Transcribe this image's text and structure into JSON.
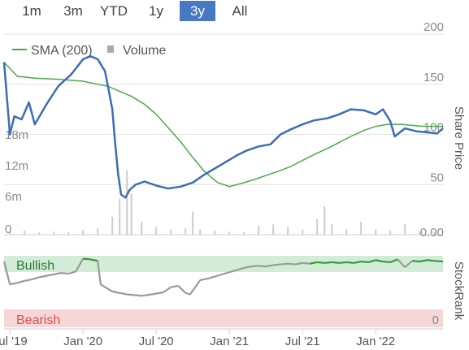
{
  "range_tabs": [
    {
      "label": "1m",
      "active": false
    },
    {
      "label": "3m",
      "active": false
    },
    {
      "label": "YTD",
      "active": false
    },
    {
      "label": "1y",
      "active": false
    },
    {
      "label": "3y",
      "active": true
    },
    {
      "label": "All",
      "active": false
    }
  ],
  "legend": {
    "sma": "SMA (200)",
    "volume": "Volume"
  },
  "stockrank": {
    "title": "StockRank",
    "bullish": "Bullish",
    "bearish": "Bearish",
    "zero": "0"
  },
  "colors": {
    "price": "#3d6db5",
    "sma": "#4aab48",
    "volume": "#cccccc",
    "tab_active": "#4678c4",
    "bullish_band": "#d3ecd7",
    "bearish_band": "#f6d6d6",
    "rank_green": "#2e9a3a",
    "rank_gray": "#9a9a9a",
    "bearish_text": "#d9534f"
  },
  "chart_data": {
    "type": "line",
    "title": "",
    "right_axis_title": "Share Price",
    "price_axis": {
      "ticks": [
        "50",
        "100",
        "150",
        "200"
      ],
      "ylim": [
        0,
        200
      ]
    },
    "volume_axis": {
      "ticks": [
        "0",
        "6m",
        "12m",
        "18m"
      ],
      "ylim": [
        0,
        27
      ]
    },
    "volume_zero_label": "0.00",
    "x_labels": [
      "Jul '19",
      "Jan '20",
      "Jul '20",
      "Jan '21",
      "Jul '21",
      "Jan '22"
    ],
    "x_ticks": [
      2019.5,
      2020.0,
      2020.5,
      2021.0,
      2021.5,
      2022.0
    ],
    "xlim": [
      2019.46,
      2022.46
    ],
    "grid": true,
    "legend_position": "top-left",
    "series": [
      {
        "name": "Share Price",
        "x": [
          2019.46,
          2019.5,
          2019.53,
          2019.58,
          2019.63,
          2019.67,
          2019.75,
          2019.83,
          2019.92,
          2020.0,
          2020.05,
          2020.1,
          2020.15,
          2020.2,
          2020.22,
          2020.24,
          2020.26,
          2020.29,
          2020.32,
          2020.36,
          2020.42,
          2020.5,
          2020.58,
          2020.67,
          2020.75,
          2020.83,
          2020.9,
          2020.97,
          2021.05,
          2021.12,
          2021.2,
          2021.28,
          2021.35,
          2021.42,
          2021.5,
          2021.58,
          2021.67,
          2021.75,
          2021.83,
          2021.92,
          2022.0,
          2022.05,
          2022.1,
          2022.13,
          2022.2,
          2022.28,
          2022.35,
          2022.42,
          2022.46
        ],
        "values": [
          172,
          100,
          118,
          115,
          132,
          110,
          130,
          148,
          160,
          175,
          178,
          175,
          163,
          125,
          90,
          60,
          40,
          37,
          45,
          50,
          53,
          49,
          46,
          48,
          52,
          60,
          66,
          72,
          79,
          84,
          88,
          90,
          100,
          105,
          110,
          114,
          116,
          120,
          125,
          124,
          120,
          125,
          113,
          98,
          106,
          103,
          102,
          101,
          106
        ]
      },
      {
        "name": "SMA (200)",
        "x": [
          2019.46,
          2019.55,
          2019.67,
          2019.83,
          2020.0,
          2020.1,
          2020.17,
          2020.25,
          2020.33,
          2020.42,
          2020.5,
          2020.58,
          2020.67,
          2020.75,
          2020.83,
          2020.92,
          2021.0,
          2021.08,
          2021.17,
          2021.25,
          2021.33,
          2021.42,
          2021.5,
          2021.58,
          2021.67,
          2021.75,
          2021.83,
          2021.92,
          2022.0,
          2022.08,
          2022.17,
          2022.25,
          2022.33,
          2022.42,
          2022.46
        ],
        "values": [
          172,
          158,
          156,
          155,
          153,
          150,
          148,
          143,
          138,
          130,
          120,
          107,
          92,
          77,
          63,
          52,
          48,
          51,
          55,
          59,
          63,
          68,
          74,
          80,
          86,
          92,
          98,
          104,
          108,
          110,
          110,
          109,
          108,
          108,
          108
        ]
      },
      {
        "name": "Volume",
        "type": "bar",
        "x": [
          2019.5,
          2019.6,
          2019.7,
          2019.8,
          2019.9,
          2020.0,
          2020.1,
          2020.2,
          2020.25,
          2020.3,
          2020.33,
          2020.4,
          2020.5,
          2020.6,
          2020.7,
          2020.75,
          2020.8,
          2020.9,
          2021.0,
          2021.1,
          2021.2,
          2021.3,
          2021.4,
          2021.5,
          2021.6,
          2021.65,
          2021.7,
          2021.8,
          2021.9,
          2022.0,
          2022.1,
          2022.2,
          2022.3,
          2022.4
        ],
        "values": [
          0.5,
          0.8,
          0.4,
          0.6,
          0.5,
          0.9,
          1.2,
          3.5,
          7.0,
          12.5,
          8.0,
          2.5,
          1.5,
          1.0,
          1.2,
          4.5,
          1.0,
          0.8,
          0.6,
          0.5,
          1.8,
          2.0,
          1.5,
          1.0,
          3.0,
          5.5,
          2.0,
          1.0,
          2.5,
          1.0,
          0.8,
          2.0,
          0.6,
          0.5
        ]
      }
    ]
  },
  "stockrank_data": {
    "x": [
      2019.46,
      2019.5,
      2019.55,
      2019.6,
      2019.65,
      2019.7,
      2019.75,
      2019.8,
      2019.85,
      2019.9,
      2019.95,
      2020.0,
      2020.05,
      2020.1,
      2020.12,
      2020.2,
      2020.3,
      2020.4,
      2020.5,
      2020.55,
      2020.6,
      2020.65,
      2020.7,
      2020.73,
      2020.76,
      2020.8,
      2020.85,
      2020.9,
      2020.95,
      2021.0,
      2021.05,
      2021.1,
      2021.15,
      2021.2,
      2021.25,
      2021.3,
      2021.35,
      2021.4,
      2021.45,
      2021.5,
      2021.55,
      2021.6,
      2021.65,
      2021.7,
      2021.75,
      2021.8,
      2021.85,
      2021.9,
      2021.95,
      2022.0,
      2022.05,
      2022.1,
      2022.15,
      2022.2,
      2022.25,
      2022.3,
      2022.35,
      2022.4,
      2022.46
    ],
    "values": [
      92,
      60,
      62,
      65,
      67,
      70,
      72,
      74,
      76,
      75,
      78,
      96,
      95,
      93,
      60,
      50,
      46,
      44,
      47,
      49,
      56,
      58,
      48,
      46,
      54,
      66,
      68,
      71,
      74,
      77,
      80,
      83,
      85,
      86,
      85,
      87,
      88,
      89,
      88,
      90,
      89,
      91,
      90,
      91,
      90,
      91,
      90,
      92,
      91,
      94,
      92,
      91,
      95,
      84,
      93,
      92,
      94,
      93,
      92
    ]
  }
}
